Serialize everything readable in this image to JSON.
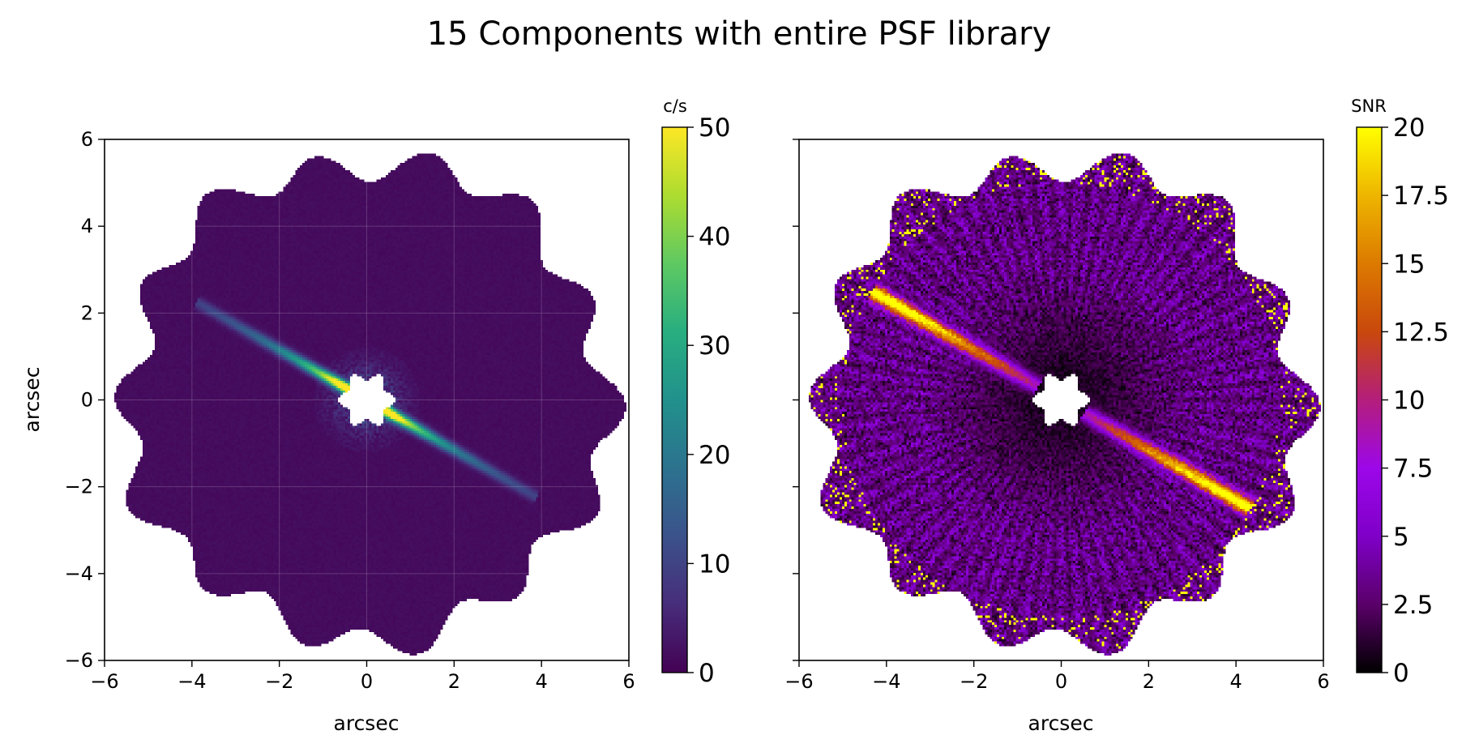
{
  "figure": {
    "title": "15 Components with entire PSF library"
  },
  "chart_data": [
    {
      "type": "heatmap",
      "title": "",
      "xlabel": "arcsec",
      "ylabel": "arcsec",
      "xlim": [
        -6,
        6
      ],
      "ylim": [
        -6,
        6
      ],
      "xticks": [
        -6,
        -4,
        -2,
        0,
        2,
        4,
        6
      ],
      "yticks": [
        -6,
        -4,
        -2,
        0,
        2,
        4,
        6
      ],
      "xtick_labels": [
        "−6",
        "−4",
        "−2",
        "0",
        "2",
        "4",
        "6"
      ],
      "ytick_labels": [
        "−6",
        "−4",
        "−2",
        "0",
        "2",
        "4",
        "6"
      ],
      "grid": true,
      "colormap": "viridis",
      "colorbar": {
        "label": "c/s",
        "range": [
          0,
          50
        ],
        "ticks": [
          0,
          10,
          20,
          30,
          40,
          50
        ],
        "tick_labels": [
          "0",
          "10",
          "20",
          "30",
          "40",
          "50"
        ]
      },
      "features": {
        "disk_position_angle_deg": -30,
        "disk_extent_arcsec": [
          -4.5,
          4.5
        ],
        "inner_mask_radius_arcsec": 0.55,
        "field_radius_arcsec": 5.5,
        "background_value": 1.5,
        "disk_peak_value": 50
      }
    },
    {
      "type": "heatmap",
      "title": "",
      "xlabel": "arcsec",
      "ylabel": "",
      "xlim": [
        -6,
        6
      ],
      "ylim": [
        -6,
        6
      ],
      "xticks": [
        -6,
        -4,
        -2,
        0,
        2,
        4,
        6
      ],
      "yticks": [
        -6,
        -4,
        -2,
        0,
        2,
        4,
        6
      ],
      "xtick_labels": [
        "−6",
        "−4",
        "−2",
        "0",
        "2",
        "4",
        "6"
      ],
      "ytick_labels": [],
      "grid": false,
      "colormap": "gnuplot",
      "colorbar": {
        "label": "SNR",
        "range": [
          0,
          20
        ],
        "ticks": [
          0,
          2.5,
          5,
          7.5,
          10,
          12.5,
          15,
          17.5,
          20
        ],
        "tick_labels": [
          "0",
          "2.5",
          "5",
          "7.5",
          "10",
          "12.5",
          "15",
          "17.5",
          "20"
        ]
      },
      "features": {
        "disk_position_angle_deg": -30,
        "disk_extent_arcsec": [
          -5,
          5
        ],
        "inner_mask_radius_arcsec": 0.55,
        "field_radius_arcsec": 5.5,
        "background_value": 4,
        "disk_peak_value": 20
      }
    }
  ]
}
